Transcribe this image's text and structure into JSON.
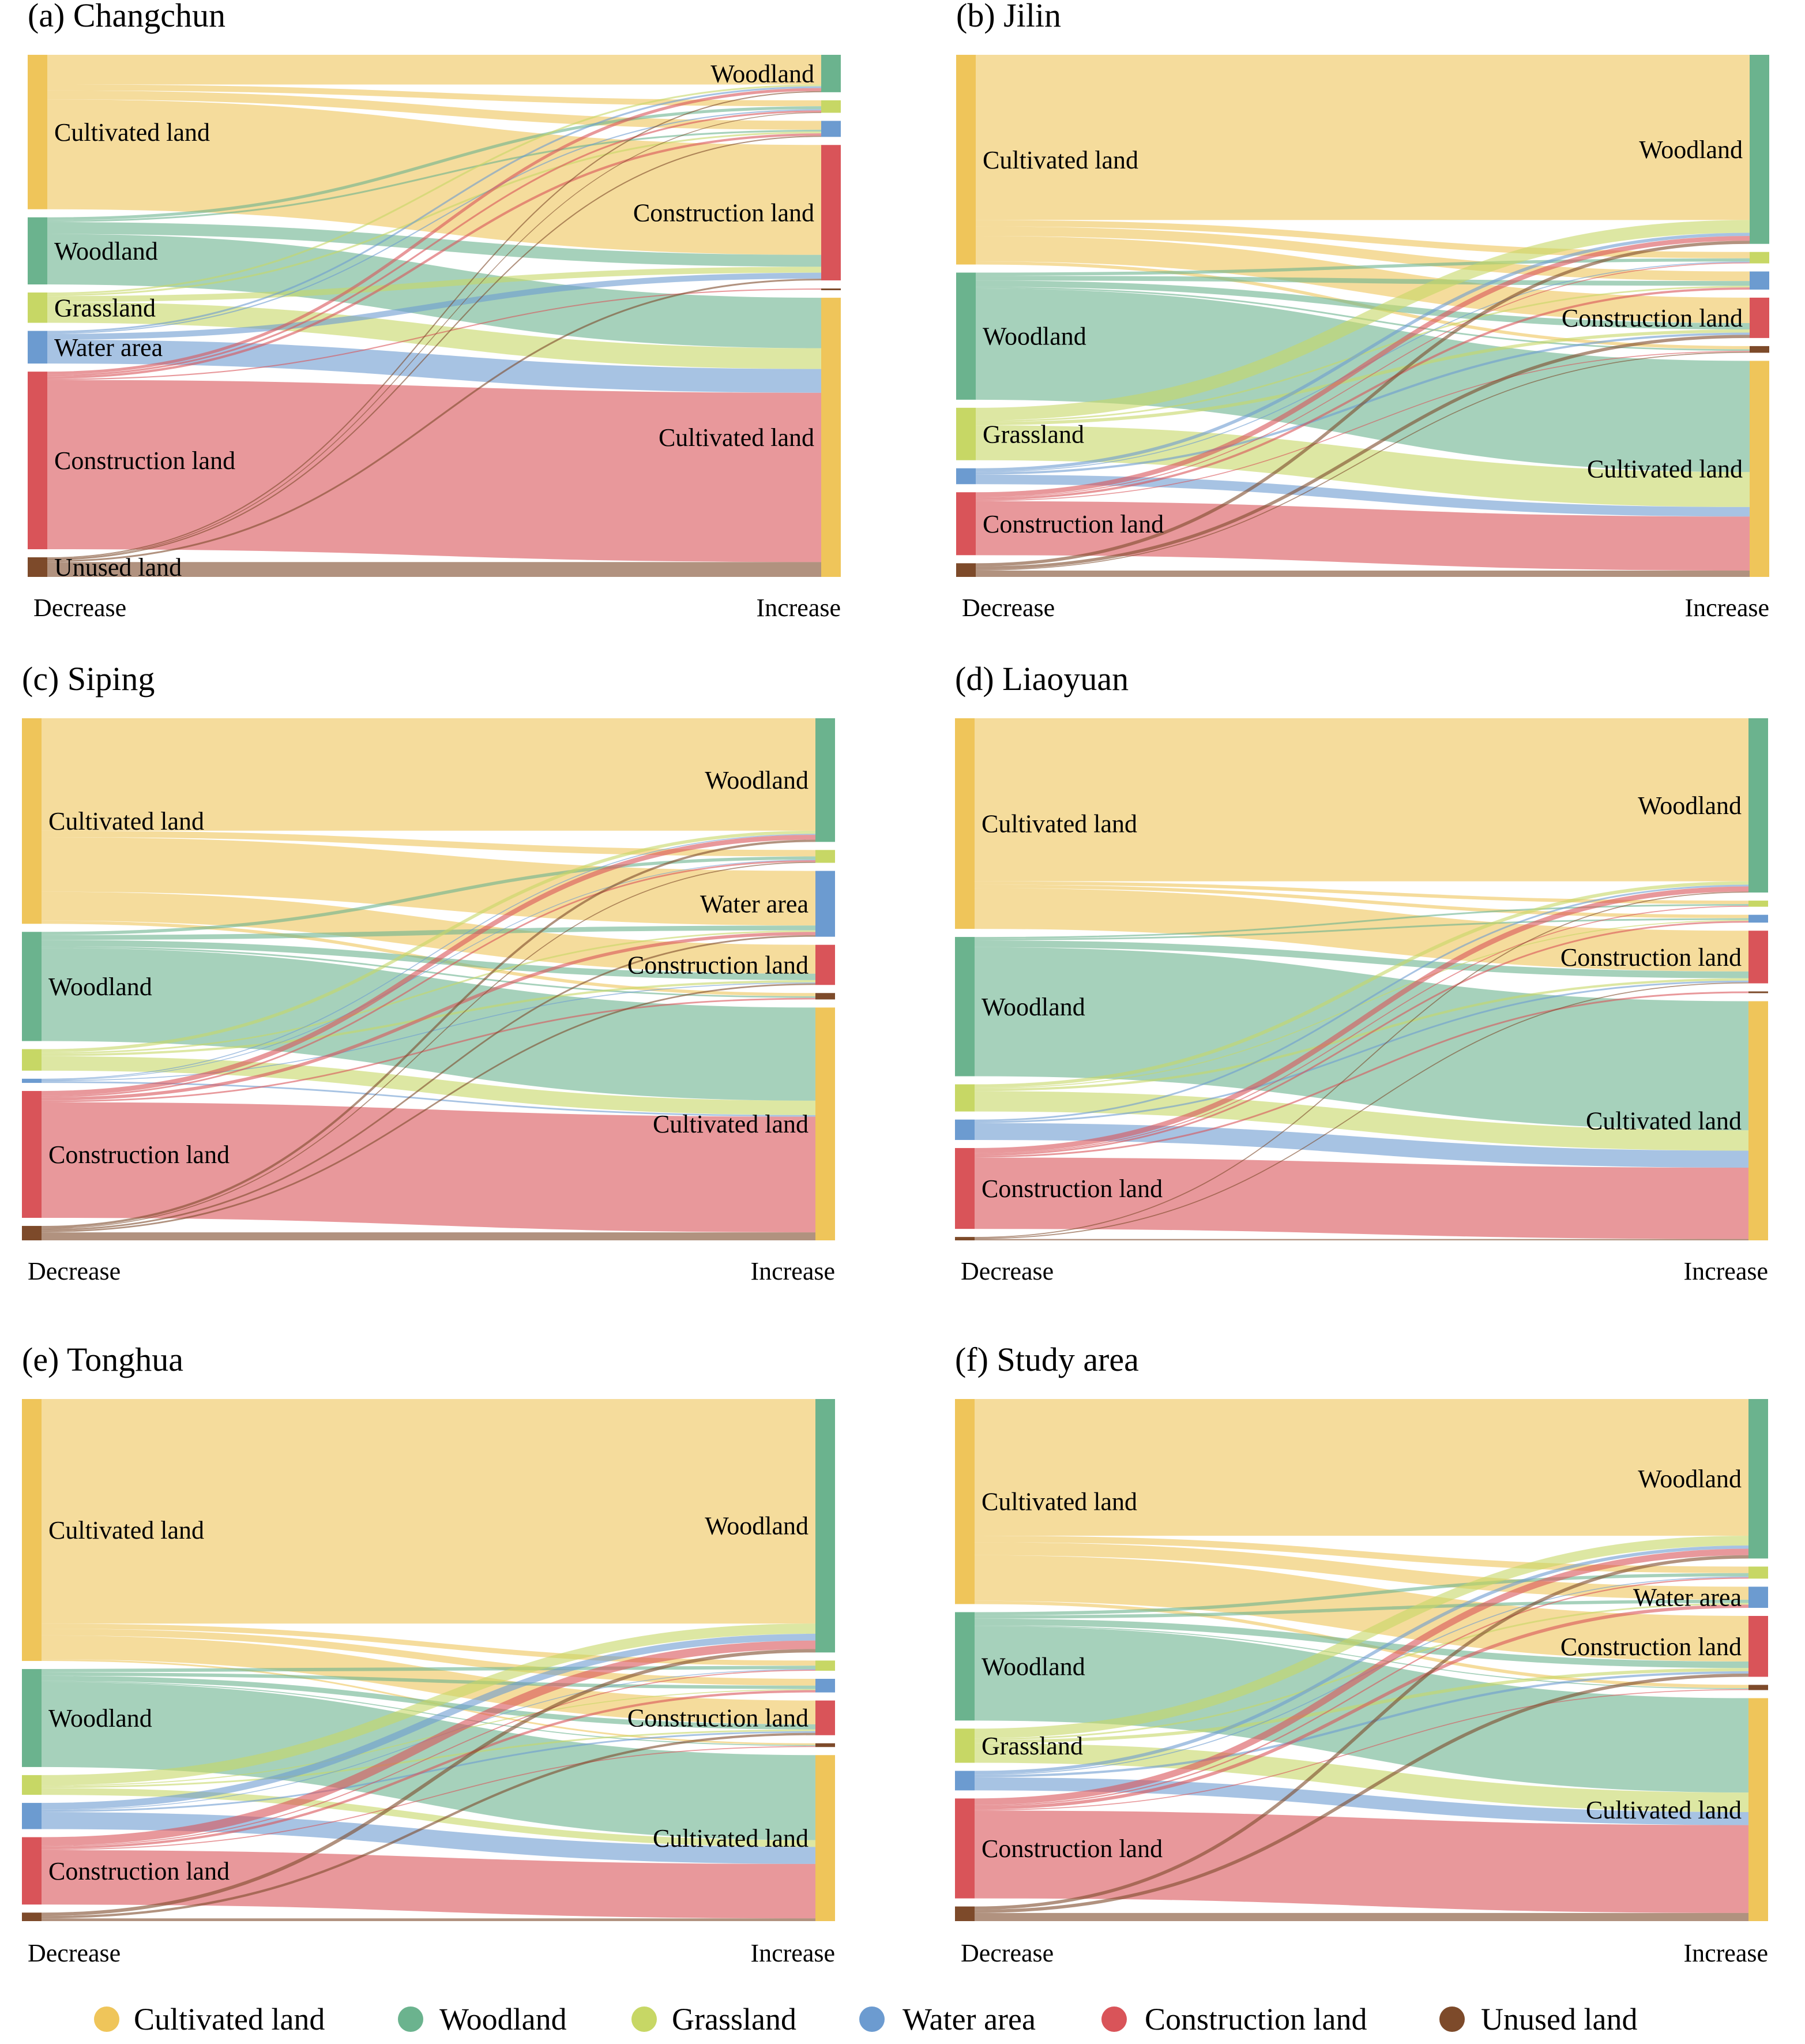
{
  "colors": {
    "Cultivated land": "#efc55a",
    "Woodland": "#6bb38e",
    "Grassland": "#c7d765",
    "Water area": "#6c9bd0",
    "Construction land": "#d95459",
    "Unused land": "#7d4a2a"
  },
  "legend": {
    "items": [
      {
        "label": "Cultivated land",
        "color": "#efc55a"
      },
      {
        "label": "Woodland",
        "color": "#6bb38e"
      },
      {
        "label": "Grassland",
        "color": "#c7d765"
      },
      {
        "label": "Water area",
        "color": "#6c9bd0"
      },
      {
        "label": "Construction land",
        "color": "#d95459"
      },
      {
        "label": "Unused land",
        "color": "#7d4a2a"
      }
    ]
  },
  "chart_data": [
    {
      "type": "sankey",
      "title": "(a) Changchun",
      "left_axis_label": "Decrease",
      "right_axis_label": "Increase",
      "left_nodes": [
        "Cultivated land",
        "Woodland",
        "Grassland",
        "Water area",
        "Construction land",
        "Unused land"
      ],
      "right_nodes": [
        "Woodland",
        "Grassland",
        "Water area",
        "Construction land",
        "Unused land",
        "Cultivated land"
      ],
      "left_labels_shown": [
        "Cultivated land",
        "Woodland",
        "Grassland",
        "Water area",
        "Construction land",
        "Unused land"
      ],
      "right_labels_shown": [
        "Woodland",
        "Construction land",
        "Cultivated land"
      ],
      "flows": [
        [
          "Cultivated land",
          "Woodland",
          10
        ],
        [
          "Cultivated land",
          "Grassland",
          2
        ],
        [
          "Cultivated land",
          "Water area",
          3
        ],
        [
          "Cultivated land",
          "Construction land",
          37
        ],
        [
          "Woodland",
          "Grassland",
          1
        ],
        [
          "Woodland",
          "Water area",
          0.6
        ],
        [
          "Woodland",
          "Construction land",
          4
        ],
        [
          "Woodland",
          "Cultivated land",
          17
        ],
        [
          "Grassland",
          "Woodland",
          0.6
        ],
        [
          "Grassland",
          "Water area",
          0.6
        ],
        [
          "Grassland",
          "Construction land",
          2
        ],
        [
          "Grassland",
          "Cultivated land",
          7
        ],
        [
          "Water area",
          "Woodland",
          0.6
        ],
        [
          "Water area",
          "Grassland",
          0.4
        ],
        [
          "Water area",
          "Construction land",
          2
        ],
        [
          "Water area",
          "Cultivated land",
          8
        ],
        [
          "Construction land",
          "Woodland",
          1
        ],
        [
          "Construction land",
          "Grassland",
          0.6
        ],
        [
          "Construction land",
          "Water area",
          0.8
        ],
        [
          "Construction land",
          "Unused land",
          0.4
        ],
        [
          "Construction land",
          "Cultivated land",
          57
        ],
        [
          "Unused land",
          "Woodland",
          0.4
        ],
        [
          "Unused land",
          "Grassland",
          0.2
        ],
        [
          "Unused land",
          "Water area",
          0.4
        ],
        [
          "Unused land",
          "Construction land",
          0.6
        ],
        [
          "Unused land",
          "Cultivated land",
          5
        ]
      ]
    },
    {
      "type": "sankey",
      "title": "(b) Jilin",
      "left_axis_label": "Decrease",
      "right_axis_label": "Increase",
      "left_nodes": [
        "Cultivated land",
        "Woodland",
        "Grassland",
        "Water area",
        "Construction land",
        "Unused land"
      ],
      "right_nodes": [
        "Woodland",
        "Grassland",
        "Water area",
        "Construction land",
        "Unused land",
        "Cultivated land"
      ],
      "left_labels_shown": [
        "Cultivated land",
        "Woodland",
        "Grassland",
        "Construction land"
      ],
      "right_labels_shown": [
        "Woodland",
        "Construction land",
        "Cultivated land"
      ],
      "flows": [
        [
          "Cultivated land",
          "Woodland",
          52
        ],
        [
          "Cultivated land",
          "Grassland",
          2
        ],
        [
          "Cultivated land",
          "Water area",
          3
        ],
        [
          "Cultivated land",
          "Construction land",
          8
        ],
        [
          "Cultivated land",
          "Unused land",
          1
        ],
        [
          "Woodland",
          "Grassland",
          1
        ],
        [
          "Woodland",
          "Water area",
          1.5
        ],
        [
          "Woodland",
          "Construction land",
          2
        ],
        [
          "Woodland",
          "Unused land",
          0.5
        ],
        [
          "Woodland",
          "Cultivated land",
          35
        ],
        [
          "Grassland",
          "Woodland",
          4
        ],
        [
          "Grassland",
          "Water area",
          0.5
        ],
        [
          "Grassland",
          "Construction land",
          1
        ],
        [
          "Grassland",
          "Cultivated land",
          11
        ],
        [
          "Water area",
          "Woodland",
          1
        ],
        [
          "Water area",
          "Grassland",
          0.3
        ],
        [
          "Water area",
          "Construction land",
          0.7
        ],
        [
          "Water area",
          "Cultivated land",
          3
        ],
        [
          "Construction land",
          "Woodland",
          1.5
        ],
        [
          "Construction land",
          "Grassland",
          0.3
        ],
        [
          "Construction land",
          "Water area",
          0.7
        ],
        [
          "Construction land",
          "Unused land",
          0.3
        ],
        [
          "Construction land",
          "Cultivated land",
          17
        ],
        [
          "Unused land",
          "Woodland",
          1
        ],
        [
          "Unused land",
          "Construction land",
          1
        ],
        [
          "Unused land",
          "Unused land",
          0.3
        ],
        [
          "Unused land",
          "Cultivated land",
          2
        ]
      ]
    },
    {
      "type": "sankey",
      "title": "(c) Siping",
      "left_axis_label": "Decrease",
      "right_axis_label": "Increase",
      "left_nodes": [
        "Cultivated land",
        "Woodland",
        "Grassland",
        "Water area",
        "Construction land",
        "Unused land"
      ],
      "right_nodes": [
        "Woodland",
        "Grassland",
        "Water area",
        "Construction land",
        "Unused land",
        "Cultivated land"
      ],
      "left_labels_shown": [
        "Cultivated land",
        "Woodland",
        "Construction land"
      ],
      "right_labels_shown": [
        "Woodland",
        "Water area",
        "Construction land",
        "Cultivated land"
      ],
      "flows": [
        [
          "Cultivated land",
          "Woodland",
          35
        ],
        [
          "Cultivated land",
          "Grassland",
          2
        ],
        [
          "Cultivated land",
          "Water area",
          17
        ],
        [
          "Cultivated land",
          "Construction land",
          9
        ],
        [
          "Cultivated land",
          "Unused land",
          1
        ],
        [
          "Woodland",
          "Grassland",
          1
        ],
        [
          "Woodland",
          "Water area",
          1.5
        ],
        [
          "Woodland",
          "Construction land",
          2
        ],
        [
          "Woodland",
          "Unused land",
          0.5
        ],
        [
          "Woodland",
          "Cultivated land",
          29
        ],
        [
          "Grassland",
          "Woodland",
          1
        ],
        [
          "Grassland",
          "Water area",
          0.5
        ],
        [
          "Grassland",
          "Construction land",
          0.7
        ],
        [
          "Grassland",
          "Cultivated land",
          4.5
        ],
        [
          "Water area",
          "Woodland",
          0.3
        ],
        [
          "Water area",
          "Grassland",
          0.2
        ],
        [
          "Water area",
          "Construction land",
          0.3
        ],
        [
          "Water area",
          "Cultivated land",
          0.5
        ],
        [
          "Construction land",
          "Woodland",
          1.5
        ],
        [
          "Construction land",
          "Grassland",
          0.5
        ],
        [
          "Construction land",
          "Water area",
          1
        ],
        [
          "Construction land",
          "Unused land",
          0.5
        ],
        [
          "Construction land",
          "Cultivated land",
          36
        ],
        [
          "Unused land",
          "Woodland",
          0.7
        ],
        [
          "Unused land",
          "Grassland",
          0.3
        ],
        [
          "Unused land",
          "Water area",
          0.5
        ],
        [
          "Unused land",
          "Construction land",
          0.5
        ],
        [
          "Unused land",
          "Cultivated land",
          2.5
        ]
      ]
    },
    {
      "type": "sankey",
      "title": "(d) Liaoyuan",
      "left_axis_label": "Decrease",
      "right_axis_label": "Increase",
      "left_nodes": [
        "Cultivated land",
        "Woodland",
        "Grassland",
        "Water area",
        "Construction land",
        "Unused land"
      ],
      "right_nodes": [
        "Woodland",
        "Grassland",
        "Water area",
        "Construction land",
        "Unused land",
        "Cultivated land"
      ],
      "left_labels_shown": [
        "Cultivated land",
        "Woodland",
        "Construction land"
      ],
      "right_labels_shown": [
        "Woodland",
        "Construction land",
        "Cultivated land"
      ],
      "flows": [
        [
          "Cultivated land",
          "Woodland",
          48
        ],
        [
          "Cultivated land",
          "Grassland",
          1
        ],
        [
          "Cultivated land",
          "Water area",
          1
        ],
        [
          "Cultivated land",
          "Construction land",
          12
        ],
        [
          "Woodland",
          "Grassland",
          0.5
        ],
        [
          "Woodland",
          "Water area",
          0.5
        ],
        [
          "Woodland",
          "Construction land",
          2
        ],
        [
          "Woodland",
          "Cultivated land",
          38
        ],
        [
          "Grassland",
          "Woodland",
          1
        ],
        [
          "Grassland",
          "Water area",
          0.3
        ],
        [
          "Grassland",
          "Construction land",
          0.7
        ],
        [
          "Grassland",
          "Cultivated land",
          6
        ],
        [
          "Water area",
          "Woodland",
          0.5
        ],
        [
          "Water area",
          "Construction land",
          0.5
        ],
        [
          "Water area",
          "Cultivated land",
          5
        ],
        [
          "Construction land",
          "Woodland",
          1.5
        ],
        [
          "Construction land",
          "Grassland",
          0.3
        ],
        [
          "Construction land",
          "Water area",
          0.5
        ],
        [
          "Construction land",
          "Unused land",
          0.5
        ],
        [
          "Construction land",
          "Cultivated land",
          21
        ],
        [
          "Unused land",
          "Woodland",
          0.3
        ],
        [
          "Unused land",
          "Construction land",
          0.3
        ],
        [
          "Unused land",
          "Cultivated land",
          0.4
        ]
      ]
    },
    {
      "type": "sankey",
      "title": "(e) Tonghua",
      "left_axis_label": "Decrease",
      "right_axis_label": "Increase",
      "left_nodes": [
        "Cultivated land",
        "Woodland",
        "Grassland",
        "Water area",
        "Construction land",
        "Unused land"
      ],
      "right_nodes": [
        "Woodland",
        "Grassland",
        "Water area",
        "Construction land",
        "Unused land",
        "Cultivated land"
      ],
      "left_labels_shown": [
        "Cultivated land",
        "Woodland",
        "Construction land"
      ],
      "right_labels_shown": [
        "Woodland",
        "Construction land",
        "Cultivated land"
      ],
      "flows": [
        [
          "Cultivated land",
          "Woodland",
          66
        ],
        [
          "Cultivated land",
          "Grassland",
          1.5
        ],
        [
          "Cultivated land",
          "Water area",
          2
        ],
        [
          "Cultivated land",
          "Construction land",
          7
        ],
        [
          "Cultivated land",
          "Unused land",
          0.5
        ],
        [
          "Woodland",
          "Grassland",
          1
        ],
        [
          "Woodland",
          "Water area",
          1
        ],
        [
          "Woodland",
          "Construction land",
          1.5
        ],
        [
          "Woodland",
          "Unused land",
          0.3
        ],
        [
          "Woodland",
          "Cultivated land",
          25
        ],
        [
          "Grassland",
          "Woodland",
          3
        ],
        [
          "Grassland",
          "Water area",
          0.3
        ],
        [
          "Grassland",
          "Construction land",
          0.5
        ],
        [
          "Grassland",
          "Cultivated land",
          2
        ],
        [
          "Water area",
          "Woodland",
          2
        ],
        [
          "Water area",
          "Grassland",
          0.2
        ],
        [
          "Water area",
          "Construction land",
          0.5
        ],
        [
          "Water area",
          "Cultivated land",
          5
        ],
        [
          "Construction land",
          "Woodland",
          2.5
        ],
        [
          "Construction land",
          "Grassland",
          0.3
        ],
        [
          "Construction land",
          "Water area",
          0.7
        ],
        [
          "Construction land",
          "Unused land",
          0.3
        ],
        [
          "Construction land",
          "Cultivated land",
          16
        ],
        [
          "Unused land",
          "Woodland",
          1
        ],
        [
          "Unused land",
          "Construction land",
          0.7
        ],
        [
          "Unused land",
          "Cultivated land",
          0.8
        ]
      ]
    },
    {
      "type": "sankey",
      "title": "(f) Study area",
      "left_axis_label": "Decrease",
      "right_axis_label": "Increase",
      "left_nodes": [
        "Cultivated land",
        "Woodland",
        "Grassland",
        "Water area",
        "Construction land",
        "Unused land"
      ],
      "right_nodes": [
        "Woodland",
        "Grassland",
        "Water area",
        "Construction land",
        "Unused land",
        "Cultivated land"
      ],
      "left_labels_shown": [
        "Cultivated land",
        "Woodland",
        "Grassland",
        "Construction land"
      ],
      "right_labels_shown": [
        "Woodland",
        "Water area",
        "Construction land",
        "Cultivated land"
      ],
      "flows": [
        [
          "Cultivated land",
          "Woodland",
          42
        ],
        [
          "Cultivated land",
          "Grassland",
          2
        ],
        [
          "Cultivated land",
          "Water area",
          4
        ],
        [
          "Cultivated land",
          "Construction land",
          14
        ],
        [
          "Cultivated land",
          "Unused land",
          1
        ],
        [
          "Woodland",
          "Grassland",
          1
        ],
        [
          "Woodland",
          "Water area",
          1
        ],
        [
          "Woodland",
          "Construction land",
          2
        ],
        [
          "Woodland",
          "Unused land",
          0.3
        ],
        [
          "Woodland",
          "Cultivated land",
          29
        ],
        [
          "Grassland",
          "Woodland",
          3
        ],
        [
          "Grassland",
          "Water area",
          0.5
        ],
        [
          "Grassland",
          "Construction land",
          1
        ],
        [
          "Grassland",
          "Cultivated land",
          6
        ],
        [
          "Water area",
          "Woodland",
          1
        ],
        [
          "Water area",
          "Grassland",
          0.3
        ],
        [
          "Water area",
          "Construction land",
          0.7
        ],
        [
          "Water area",
          "Cultivated land",
          4
        ],
        [
          "Construction land",
          "Woodland",
          2
        ],
        [
          "Construction land",
          "Grassland",
          0.4
        ],
        [
          "Construction land",
          "Water area",
          1
        ],
        [
          "Construction land",
          "Unused land",
          0.3
        ],
        [
          "Construction land",
          "Cultivated land",
          27
        ],
        [
          "Unused land",
          "Woodland",
          1
        ],
        [
          "Unused land",
          "Construction land",
          1
        ],
        [
          "Unused land",
          "Cultivated land",
          2.5
        ]
      ]
    }
  ]
}
